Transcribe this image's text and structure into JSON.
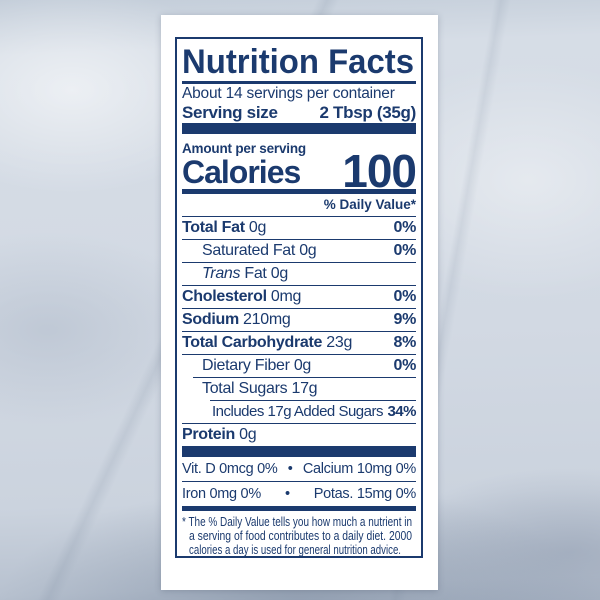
{
  "colors": {
    "navy": "#1b3a6e",
    "panel": "#ffffff",
    "marble_base": "#cdd6e0"
  },
  "label": {
    "title": "Nutrition Facts",
    "servings_line": "About 14 servings per container",
    "serving_size": {
      "label": "Serving size",
      "value": "2 Tbsp (35g)"
    },
    "amount_per_serving": "Amount per serving",
    "calories": {
      "label": "Calories",
      "value": "100"
    },
    "daily_value_header": "% Daily Value*",
    "nutrients": [
      {
        "b": "Total Fat",
        "r": " 0g",
        "dv": "0%"
      },
      {
        "r": "Saturated Fat 0g",
        "dv": "0%"
      },
      {
        "i": "Trans",
        "r": " Fat 0g",
        "dv": ""
      },
      {
        "b": "Cholesterol",
        "r": " 0mg",
        "dv": "0%"
      },
      {
        "b": "Sodium",
        "r": " 210mg",
        "dv": "9%"
      },
      {
        "b": "Total Carbohydrate",
        "r": " 23g",
        "dv": "8%"
      },
      {
        "r": "Dietary Fiber 0g",
        "dv": "0%"
      },
      {
        "r": "Total Sugars 17g",
        "dv": ""
      },
      {
        "r": "Includes 17g Added Sugars",
        "dv": "34%"
      },
      {
        "b": "Protein",
        "r": " 0g",
        "dv": ""
      }
    ],
    "micronutrients": [
      {
        "left": "Vit. D 0mcg 0%",
        "bullet": "•",
        "right": "Calcium 10mg 0%"
      },
      {
        "left": "Iron 0mg 0%",
        "bullet": "•",
        "right": "Potas. 15mg 0%"
      }
    ],
    "footnote_lines": [
      "* The % Daily Value tells you how much a nutrient in",
      "a serving of food contributes to a daily diet. 2000",
      "calories a day is used for general nutrition advice."
    ]
  }
}
